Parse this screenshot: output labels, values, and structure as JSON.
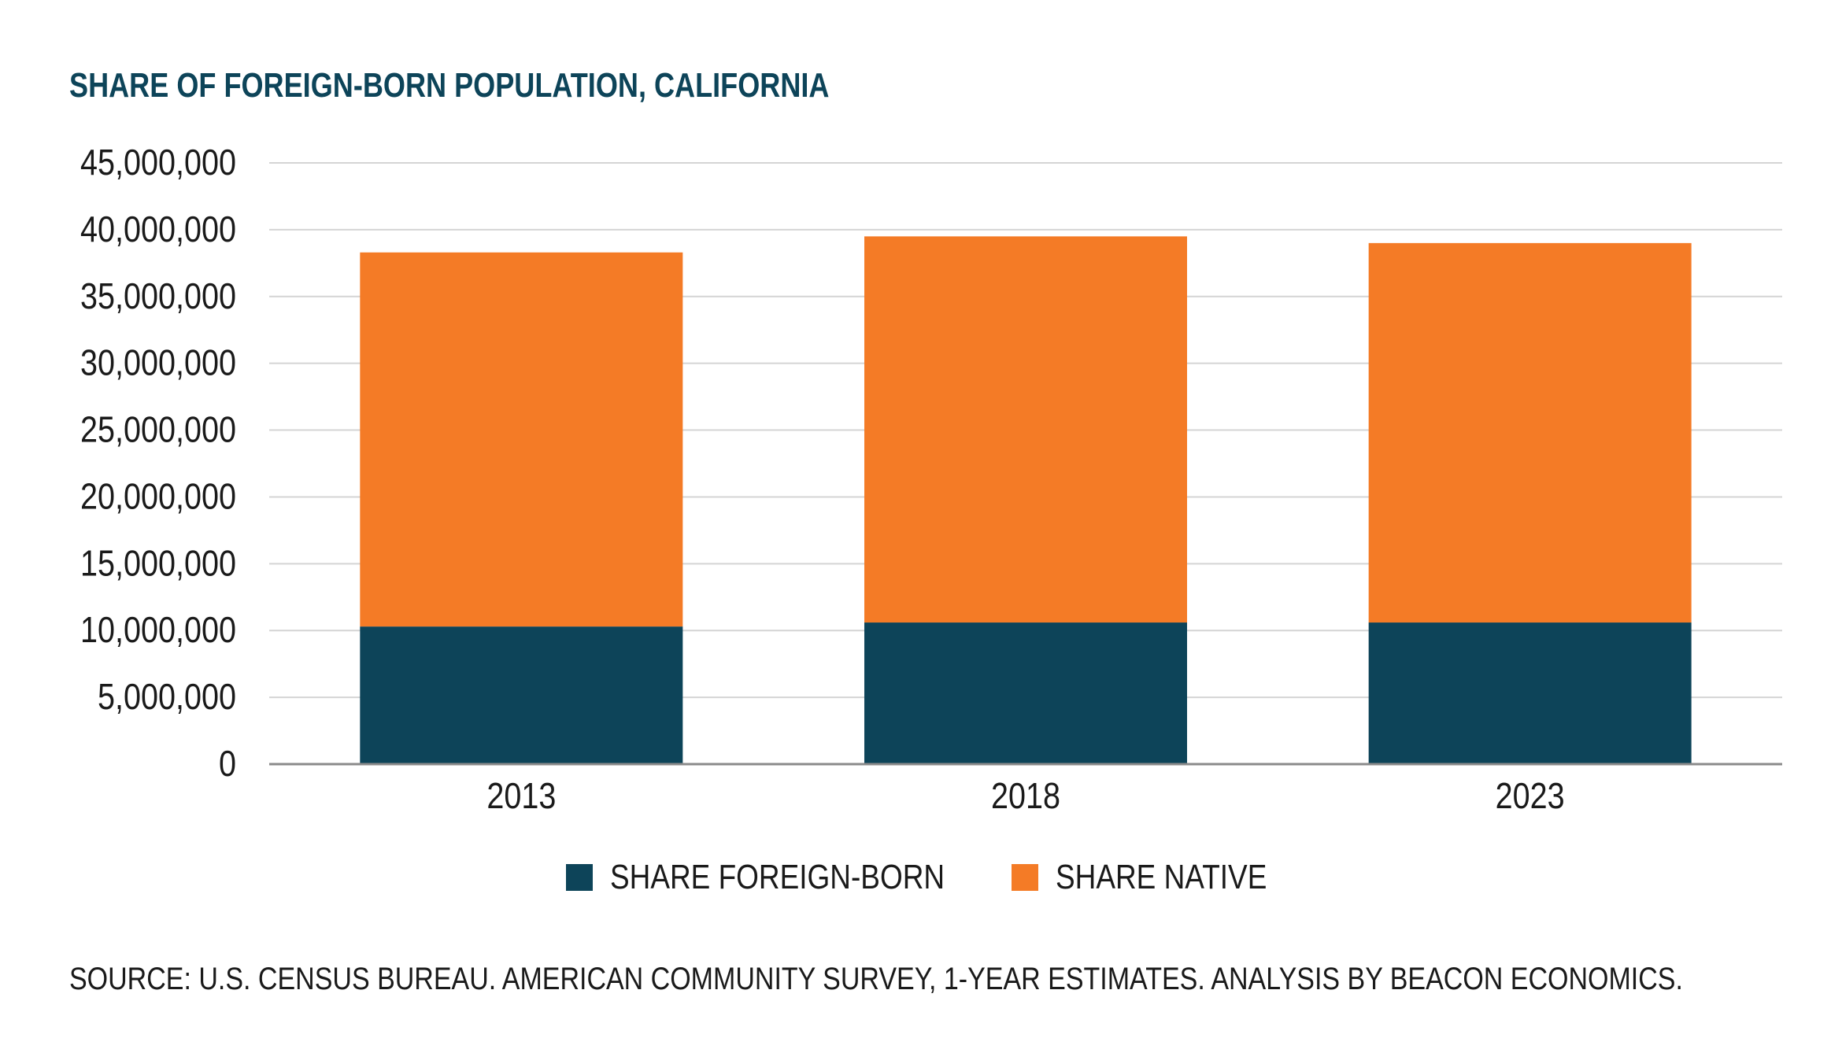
{
  "chart_data": {
    "type": "bar",
    "stacked": true,
    "title": "SHARE OF FOREIGN-BORN POPULATION, CALIFORNIA",
    "categories": [
      "2013",
      "2018",
      "2023"
    ],
    "series": [
      {
        "name": "SHARE FOREIGN-BORN",
        "color": "#0d4459",
        "values": [
          10300000,
          10600000,
          10600000
        ]
      },
      {
        "name": "SHARE NATIVE",
        "color": "#f47b26",
        "values": [
          28000000,
          28900000,
          28400000
        ]
      }
    ],
    "yticks": [
      "0",
      "5,000,000",
      "10,000,000",
      "15,000,000",
      "20,000,000",
      "25,000,000",
      "30,000,000",
      "35,000,000",
      "40,000,000",
      "45,000,000"
    ],
    "ylim": [
      0,
      45000000
    ],
    "xlabel": "",
    "ylabel": "",
    "grid": true,
    "legend_position": "bottom"
  },
  "source": "SOURCE: U.S. CENSUS BUREAU. AMERICAN COMMUNITY SURVEY, 1-YEAR ESTIMATES. ANALYSIS BY BEACON ECONOMICS."
}
